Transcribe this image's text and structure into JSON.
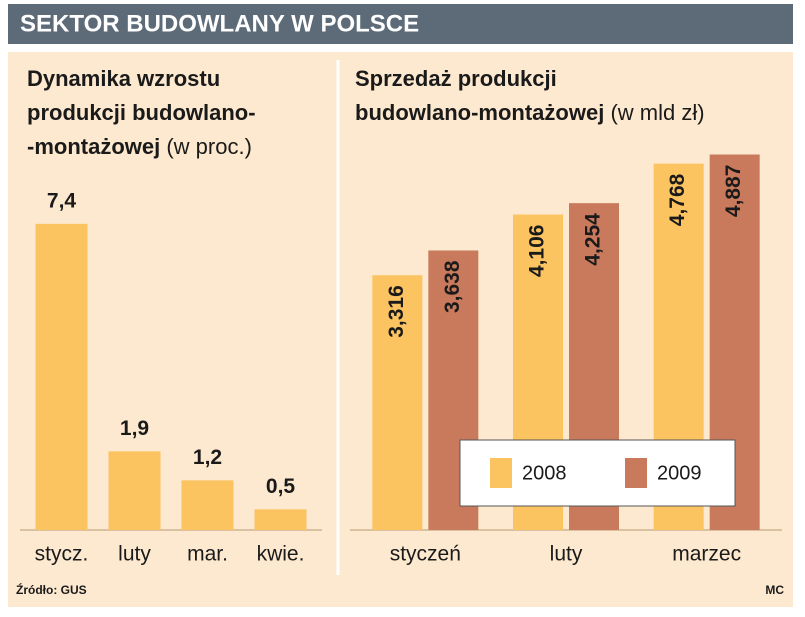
{
  "header": {
    "title": "SEKTOR BUDOWLANY W POLSCE"
  },
  "chart_data": [
    {
      "type": "bar",
      "title": [
        "Dynamika wzrostu",
        "produkcji budowlano-",
        "-montażowej"
      ],
      "unit": "(w proc.)",
      "categories": [
        "stycz.",
        "luty",
        "mar.",
        "kwie."
      ],
      "values": [
        7.4,
        1.9,
        1.2,
        0.5
      ],
      "value_labels": [
        "7,4",
        "1,9",
        "1,2",
        "0,5"
      ],
      "color": "#fbc460",
      "ylim": [
        0,
        8
      ]
    },
    {
      "type": "bar",
      "title": [
        "Sprzedaż produkcji",
        "budowlano-montażowej"
      ],
      "unit": "(w mld zł)",
      "categories": [
        "styczeń",
        "luty",
        "marzec"
      ],
      "series": [
        {
          "name": "2008",
          "color": "#fbc460",
          "values": [
            3.316,
            4.106,
            4.768
          ],
          "value_labels": [
            "3,316",
            "4,106",
            "4,768"
          ]
        },
        {
          "name": "2009",
          "color": "#c97a5c",
          "values": [
            3.638,
            4.254,
            4.887
          ],
          "value_labels": [
            "3,638",
            "4,254",
            "4,887"
          ]
        }
      ],
      "ylim": [
        0,
        6
      ],
      "legend": "lower right"
    }
  ],
  "footer": {
    "source": "Źródło: GUS",
    "credit": "MC"
  }
}
